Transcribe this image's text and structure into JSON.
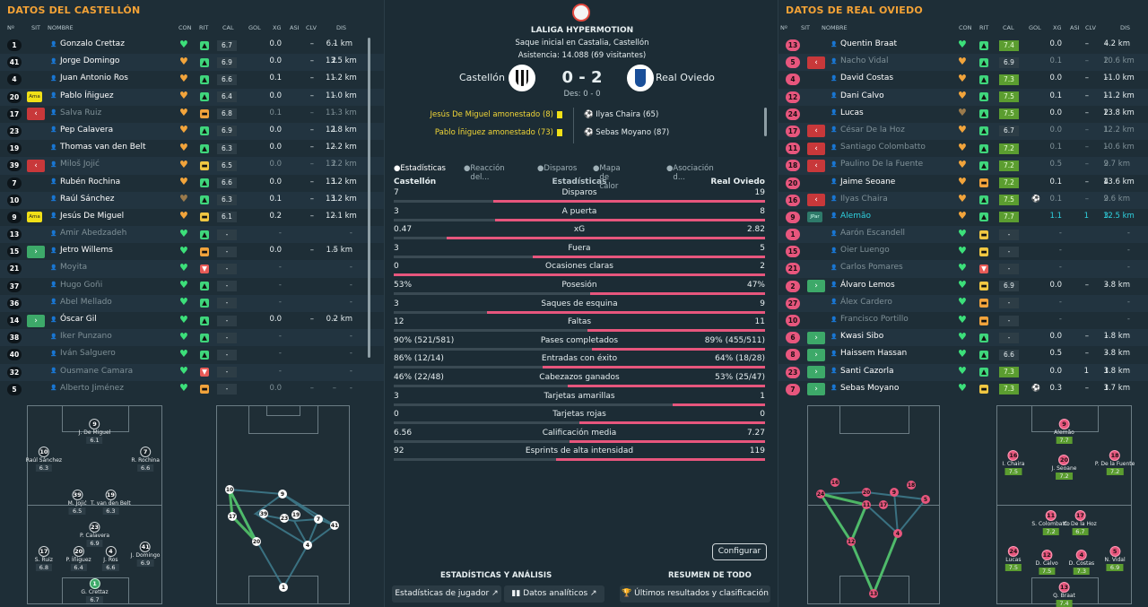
{
  "colors": {
    "accent": "#f3a236",
    "away": "#e7567d",
    "home": "#0d151a",
    "bar_home": "#3a4a53"
  },
  "left": {
    "title": "DATOS DEL CASTELLÓN",
    "headers": [
      "Nº",
      "SIT",
      "NOMBRE",
      "CON",
      "RIT",
      "CAL",
      "GOL",
      "XG",
      "ASI",
      "CLV",
      "DIS"
    ],
    "players": [
      {
        "num": "1",
        "sit": "",
        "name": "Gonzalo Crettaz",
        "dim": false,
        "con": "g",
        "rit": "up",
        "cal": "6.7",
        "gol": "",
        "xg": "0.0",
        "asi": "–",
        "clv": "–",
        "dis": "6.1 km"
      },
      {
        "num": "41",
        "sit": "",
        "name": "Jorge Domingo",
        "dim": false,
        "con": "o",
        "rit": "up",
        "cal": "6.9",
        "gol": "",
        "xg": "0.0",
        "asi": "–",
        "clv": "2",
        "dis": "13.5 km"
      },
      {
        "num": "4",
        "sit": "",
        "name": "Juan Antonio Ros",
        "dim": false,
        "con": "o",
        "rit": "up",
        "cal": "6.6",
        "gol": "",
        "xg": "0.1",
        "asi": "–",
        "clv": "–",
        "dis": "11.2 km"
      },
      {
        "num": "20",
        "sit": "ama",
        "sit_label": "Ama",
        "name": "Pablo Íñiguez",
        "dim": false,
        "con": "o",
        "rit": "up",
        "cal": "6.4",
        "gol": "",
        "xg": "0.0",
        "asi": "–",
        "clv": "–",
        "dis": "11.0 km"
      },
      {
        "num": "17",
        "sit": "out",
        "name": "Salva Ruiz",
        "dim": true,
        "con": "o",
        "rit": "mid",
        "cal": "6.8",
        "gol": "",
        "xg": "0.1",
        "asi": "–",
        "clv": "–",
        "dis": "11.3 km"
      },
      {
        "num": "23",
        "sit": "",
        "name": "Pep Calavera",
        "dim": false,
        "con": "o",
        "rit": "up",
        "cal": "6.9",
        "gol": "",
        "xg": "0.0",
        "asi": "–",
        "clv": "1",
        "dis": "12.8 km"
      },
      {
        "num": "19",
        "sit": "",
        "name": "Thomas van den Belt",
        "dim": false,
        "con": "o",
        "rit": "up",
        "cal": "6.3",
        "gol": "",
        "xg": "0.0",
        "asi": "–",
        "clv": "–",
        "dis": "12.2 km"
      },
      {
        "num": "39",
        "sit": "out",
        "name": "Miloš Jojić",
        "dim": true,
        "con": "o",
        "rit": "eq",
        "cal": "6.5",
        "gol": "",
        "xg": "0.0",
        "asi": "–",
        "clv": "2",
        "dis": "13.2 km"
      },
      {
        "num": "7",
        "sit": "",
        "name": "Rubén Rochina",
        "dim": false,
        "con": "o",
        "rit": "up",
        "cal": "6.6",
        "gol": "",
        "xg": "0.0",
        "asi": "–",
        "clv": "1",
        "dis": "13.2 km"
      },
      {
        "num": "10",
        "sit": "",
        "name": "Raúl Sánchez",
        "dim": false,
        "con": "d",
        "rit": "up",
        "cal": "6.3",
        "gol": "",
        "xg": "0.1",
        "asi": "–",
        "clv": "1",
        "dis": "13.2 km"
      },
      {
        "num": "9",
        "sit": "ama",
        "sit_label": "Ama",
        "name": "Jesús De Miguel",
        "dim": false,
        "con": "o",
        "rit": "eq",
        "cal": "6.1",
        "gol": "",
        "xg": "0.2",
        "asi": "–",
        "clv": "–",
        "dis": "12.1 km"
      },
      {
        "num": "13",
        "sit": "",
        "name": "Amir Abedzadeh",
        "dim": true,
        "con": "g",
        "rit": "up",
        "cal": "-",
        "gol": "",
        "xg": "-",
        "asi": "",
        "clv": "",
        "dis": "-"
      },
      {
        "num": "15",
        "sit": "in",
        "name": "Jetro Willems",
        "dim": false,
        "con": "g",
        "rit": "mid",
        "cal": "-",
        "gol": "",
        "xg": "0.0",
        "asi": "–",
        "clv": "–",
        "dis": "1.5 km"
      },
      {
        "num": "21",
        "sit": "",
        "name": "Moyita",
        "dim": true,
        "con": "g",
        "rit": "dn",
        "cal": "-",
        "gol": "",
        "xg": "-",
        "asi": "",
        "clv": "",
        "dis": "-"
      },
      {
        "num": "37",
        "sit": "",
        "name": "Hugo Goñi",
        "dim": true,
        "con": "g",
        "rit": "up",
        "cal": "-",
        "gol": "",
        "xg": "-",
        "asi": "",
        "clv": "",
        "dis": "-"
      },
      {
        "num": "36",
        "sit": "",
        "name": "Abel Mellado",
        "dim": true,
        "con": "g",
        "rit": "up",
        "cal": "-",
        "gol": "",
        "xg": "-",
        "asi": "",
        "clv": "",
        "dis": "-"
      },
      {
        "num": "14",
        "sit": "in",
        "name": "Óscar Gil",
        "dim": false,
        "con": "g",
        "rit": "up",
        "cal": "-",
        "gol": "",
        "xg": "0.0",
        "asi": "–",
        "clv": "–",
        "dis": "0.2 km"
      },
      {
        "num": "38",
        "sit": "",
        "name": "Iker Punzano",
        "dim": true,
        "con": "g",
        "rit": "up",
        "cal": "-",
        "gol": "",
        "xg": "-",
        "asi": "",
        "clv": "",
        "dis": "-"
      },
      {
        "num": "40",
        "sit": "",
        "name": "Iván Salguero",
        "dim": true,
        "con": "g",
        "rit": "up",
        "cal": "-",
        "gol": "",
        "xg": "-",
        "asi": "",
        "clv": "",
        "dis": "-"
      },
      {
        "num": "32",
        "sit": "",
        "name": "Ousmane Camara",
        "dim": true,
        "con": "g",
        "rit": "dn",
        "cal": "-",
        "gol": "",
        "xg": "-",
        "asi": "",
        "clv": "",
        "dis": "-"
      },
      {
        "num": "5",
        "sit": "",
        "name": "Alberto Jiménez",
        "dim": true,
        "con": "g",
        "rit": "mid",
        "cal": "-",
        "gol": "",
        "xg": "0.0",
        "asi": "–",
        "clv": "–",
        "dis": "-"
      }
    ],
    "formation": [
      {
        "num": "9",
        "name": "J. De Miguel",
        "rating": "6.1",
        "top": 20,
        "left": 50
      },
      {
        "num": "10",
        "name": "Raúl Sánchez",
        "rating": "6.3",
        "top": 51,
        "left": 12
      },
      {
        "num": "7",
        "name": "R. Rochina",
        "rating": "6.6",
        "top": 51,
        "left": 88
      },
      {
        "num": "39",
        "name": "M. Jojić",
        "rating": "6.5",
        "top": 99,
        "left": 37
      },
      {
        "num": "19",
        "name": "T. van den Belt",
        "rating": "6.3",
        "top": 99,
        "left": 62
      },
      {
        "num": "23",
        "name": "P. Calavera",
        "rating": "6.9",
        "top": 135,
        "left": 50
      },
      {
        "num": "17",
        "name": "S. Ruiz",
        "rating": "6.8",
        "top": 162,
        "left": 12
      },
      {
        "num": "20",
        "name": "P. Íñiguez",
        "rating": "6.4",
        "top": 162,
        "left": 38
      },
      {
        "num": "4",
        "name": "J. Ros",
        "rating": "6.6",
        "top": 162,
        "left": 62
      },
      {
        "num": "41",
        "name": "J. Domingo",
        "rating": "6.9",
        "top": 157,
        "left": 88
      },
      {
        "num": "1",
        "name": "G. Crettaz",
        "rating": "6.7",
        "top": 198,
        "left": 50,
        "gk": true
      }
    ]
  },
  "center": {
    "league": "LALIGA HYPERMOTION",
    "venue": "Saque inicial en Castalia, Castellón",
    "attendance": "Asistencia: 14.088 (69 visitantes)",
    "home": "Castellón",
    "away": "Real Oviedo",
    "score": "0 - 2",
    "halftime": "Des: 0 - 0",
    "home_events": [
      "Jesús De Miguel amonestado (8)",
      "Pablo Íñiguez amonestado (73)"
    ],
    "away_events": [
      "Ilyas Chaira (65)",
      "Sebas Moyano (87)"
    ],
    "tabs": [
      "Estadísticas",
      "Reacción del...",
      "Disparos",
      "Mapa de calor",
      "Asociación d..."
    ],
    "stats_header": {
      "left": "Castellón",
      "mid": "Estadísticas",
      "right": "Real Oviedo"
    },
    "stats": [
      {
        "label": "Disparos",
        "l": "7",
        "r": "19",
        "lv": 7,
        "rv": 19
      },
      {
        "label": "A puerta",
        "l": "3",
        "r": "8",
        "lv": 3,
        "rv": 8
      },
      {
        "label": "xG",
        "l": "0.47",
        "r": "2.82",
        "lv": 0.47,
        "rv": 2.82
      },
      {
        "label": "Fuera",
        "l": "3",
        "r": "5",
        "lv": 3,
        "rv": 5
      },
      {
        "label": "Ocasiones claras",
        "l": "0",
        "r": "2",
        "lv": 0,
        "rv": 2
      },
      {
        "label": "Posesión",
        "l": "53%",
        "r": "47%",
        "lv": 53,
        "rv": 47
      },
      {
        "label": "Saques de esquina",
        "l": "3",
        "r": "9",
        "lv": 3,
        "rv": 9
      },
      {
        "label": "Faltas",
        "l": "12",
        "r": "11",
        "lv": 12,
        "rv": 11
      },
      {
        "label": "Pases completados",
        "l": "90% (521/581)",
        "r": "89% (455/511)",
        "lv": 521,
        "rv": 455
      },
      {
        "label": "Entradas con éxito",
        "l": "86% (12/14)",
        "r": "64% (18/28)",
        "lv": 12,
        "rv": 18
      },
      {
        "label": "Cabezazos ganados",
        "l": "46% (22/48)",
        "r": "53% (25/47)",
        "lv": 22,
        "rv": 25
      },
      {
        "label": "Tarjetas amarillas",
        "l": "3",
        "r": "1",
        "lv": 3,
        "rv": 1
      },
      {
        "label": "Tarjetas rojas",
        "l": "0",
        "r": "0",
        "lv": 0,
        "rv": 0
      },
      {
        "label": "Calificación media",
        "l": "6.56",
        "r": "7.27",
        "lv": 6.56,
        "rv": 7.27
      },
      {
        "label": "Esprints de alta intensidad",
        "l": "92",
        "r": "119",
        "lv": 92,
        "rv": 119
      }
    ],
    "configure": "Configurar",
    "section_left": "ESTADÍSTICAS Y ANÁLISIS",
    "section_right": "RESUMEN DE TODO",
    "buttons": [
      "Estadísticas de jugador",
      "Datos analíticos",
      "Últimos resultados y clasificación"
    ]
  },
  "right": {
    "title": "DATOS DE REAL OVIEDO",
    "headers": [
      "Nº",
      "SIT",
      "NOMBRE",
      "CON",
      "RIT",
      "CAL",
      "GOL",
      "XG",
      "ASI",
      "CLV",
      "DIS"
    ],
    "players": [
      {
        "num": "13",
        "sit": "",
        "name": "Quentin Braat",
        "dim": false,
        "con": "g",
        "rit": "up",
        "cal": "7.4",
        "calg": true,
        "gol": "",
        "xg": "0.0",
        "asi": "–",
        "clv": "–",
        "dis": "4.2 km"
      },
      {
        "num": "5",
        "sit": "out",
        "name": "Nacho Vidal",
        "dim": true,
        "con": "o",
        "rit": "up",
        "cal": "6.9",
        "gol": "",
        "xg": "0.1",
        "asi": "–",
        "clv": "2",
        "dis": "10.6 km"
      },
      {
        "num": "4",
        "sit": "",
        "name": "David Costas",
        "dim": false,
        "con": "o",
        "rit": "up",
        "cal": "7.3",
        "calg": true,
        "gol": "",
        "xg": "0.0",
        "asi": "–",
        "clv": "–",
        "dis": "11.0 km"
      },
      {
        "num": "12",
        "sit": "",
        "name": "Dani Calvo",
        "dim": false,
        "con": "o",
        "rit": "up",
        "cal": "7.5",
        "calg": true,
        "gol": "",
        "xg": "0.1",
        "asi": "–",
        "clv": "–",
        "dis": "11.2 km"
      },
      {
        "num": "24",
        "sit": "",
        "name": "Lucas",
        "dim": false,
        "con": "d",
        "rit": "up",
        "cal": "7.5",
        "calg": true,
        "gol": "",
        "xg": "0.0",
        "asi": "–",
        "clv": "2",
        "dis": "13.8 km"
      },
      {
        "num": "17",
        "sit": "out",
        "name": "César De la Hoz",
        "dim": true,
        "con": "o",
        "rit": "up",
        "cal": "6.7",
        "gol": "",
        "xg": "0.0",
        "asi": "–",
        "clv": "1",
        "dis": "12.2 km"
      },
      {
        "num": "11",
        "sit": "out",
        "name": "Santiago Colombatto",
        "dim": true,
        "con": "o",
        "rit": "up",
        "cal": "7.2",
        "calg": true,
        "gol": "",
        "xg": "0.1",
        "asi": "–",
        "clv": "–",
        "dis": "10.6 km"
      },
      {
        "num": "18",
        "sit": "out",
        "name": "Paulino De la Fuente",
        "dim": true,
        "con": "o",
        "rit": "up",
        "cal": "7.2",
        "calg": true,
        "gol": "",
        "xg": "0.5",
        "asi": "–",
        "clv": "2",
        "dis": "9.7 km"
      },
      {
        "num": "20",
        "sit": "",
        "name": "Jaime Seoane",
        "dim": false,
        "con": "o",
        "rit": "mid",
        "cal": "7.2",
        "calg": true,
        "gol": "",
        "xg": "0.1",
        "asi": "–",
        "clv": "4",
        "dis": "13.6 km"
      },
      {
        "num": "16",
        "sit": "out",
        "name": "Ilyas Chaira",
        "dim": true,
        "con": "o",
        "rit": "up",
        "cal": "7.5",
        "calg": true,
        "gol": "⚽",
        "xg": "0.1",
        "asi": "–",
        "clv": "2",
        "dis": "9.6 km"
      },
      {
        "num": "9",
        "sit": "jpar",
        "sit_label": "JPar",
        "name": "Alemão",
        "dim": false,
        "hl": true,
        "con": "o",
        "rit": "up",
        "cal": "7.7",
        "calg": true,
        "gol": "",
        "xg": "1.1",
        "asi": "1",
        "clv": "3",
        "dis": "12.5 km"
      },
      {
        "num": "1",
        "sit": "",
        "name": "Aarón Escandell",
        "dim": true,
        "con": "g",
        "rit": "eq",
        "cal": "-",
        "gol": "",
        "xg": "-",
        "asi": "",
        "clv": "",
        "dis": "-"
      },
      {
        "num": "15",
        "sit": "",
        "name": "Oier Luengo",
        "dim": true,
        "con": "g",
        "rit": "eq",
        "cal": "-",
        "gol": "",
        "xg": "-",
        "asi": "",
        "clv": "",
        "dis": "-"
      },
      {
        "num": "21",
        "sit": "",
        "name": "Carlos Pomares",
        "dim": true,
        "con": "g",
        "rit": "dn",
        "cal": "-",
        "gol": "",
        "xg": "-",
        "asi": "",
        "clv": "",
        "dis": "-"
      },
      {
        "num": "2",
        "sit": "in",
        "name": "Álvaro Lemos",
        "dim": false,
        "con": "g",
        "rit": "eq",
        "cal": "6.9",
        "gol": "",
        "xg": "0.0",
        "asi": "–",
        "clv": "–",
        "dis": "3.8 km"
      },
      {
        "num": "27",
        "sit": "",
        "name": "Álex Cardero",
        "dim": true,
        "con": "g",
        "rit": "mid",
        "cal": "-",
        "gol": "",
        "xg": "-",
        "asi": "",
        "clv": "",
        "dis": "-"
      },
      {
        "num": "10",
        "sit": "",
        "name": "Francisco Portillo",
        "dim": true,
        "con": "g",
        "rit": "mid",
        "cal": "-",
        "gol": "",
        "xg": "-",
        "asi": "",
        "clv": "",
        "dis": "-"
      },
      {
        "num": "6",
        "sit": "in",
        "name": "Kwasi Sibo",
        "dim": false,
        "con": "g",
        "rit": "up",
        "cal": "-",
        "gol": "",
        "xg": "0.0",
        "asi": "–",
        "clv": "–",
        "dis": "1.8 km"
      },
      {
        "num": "8",
        "sit": "in",
        "name": "Haissem Hassan",
        "dim": false,
        "con": "g",
        "rit": "up",
        "cal": "6.6",
        "gol": "",
        "xg": "0.5",
        "asi": "–",
        "clv": "–",
        "dis": "3.8 km"
      },
      {
        "num": "23",
        "sit": "in",
        "name": "Santi Cazorla",
        "dim": false,
        "con": "g",
        "rit": "up",
        "cal": "7.3",
        "calg": true,
        "gol": "",
        "xg": "0.0",
        "asi": "1",
        "clv": "1",
        "dis": "3.8 km"
      },
      {
        "num": "7",
        "sit": "in",
        "name": "Sebas Moyano",
        "dim": false,
        "con": "g",
        "rit": "eq",
        "cal": "7.3",
        "calg": true,
        "gol": "⚽",
        "xg": "0.3",
        "asi": "–",
        "clv": "1",
        "dis": "3.7 km"
      }
    ],
    "formation": [
      {
        "num": "9",
        "name": "Alemão",
        "rating": "7.7",
        "top": 20,
        "left": 50
      },
      {
        "num": "16",
        "name": "I. Chaira",
        "rating": "7.5",
        "top": 55,
        "left": 12
      },
      {
        "num": "20",
        "name": "J. Seoane",
        "rating": "7.2",
        "top": 60,
        "left": 50
      },
      {
        "num": "18",
        "name": "P. De la Fuente",
        "rating": "7.2",
        "top": 55,
        "left": 88
      },
      {
        "num": "11",
        "name": "S. Colombatto",
        "rating": "7.2",
        "top": 122,
        "left": 40
      },
      {
        "num": "17",
        "name": "C. De la Hoz",
        "rating": "6.7",
        "top": 122,
        "left": 62
      },
      {
        "num": "24",
        "name": "Lucas",
        "rating": "7.5",
        "top": 162,
        "left": 12
      },
      {
        "num": "12",
        "name": "D. Calvo",
        "rating": "7.5",
        "top": 166,
        "left": 37
      },
      {
        "num": "4",
        "name": "D. Costas",
        "rating": "7.3",
        "top": 166,
        "left": 63
      },
      {
        "num": "5",
        "name": "N. Vidal",
        "rating": "6.9",
        "top": 162,
        "left": 88
      },
      {
        "num": "13",
        "name": "Q. Braat",
        "rating": "7.4",
        "top": 202,
        "left": 50
      }
    ]
  }
}
